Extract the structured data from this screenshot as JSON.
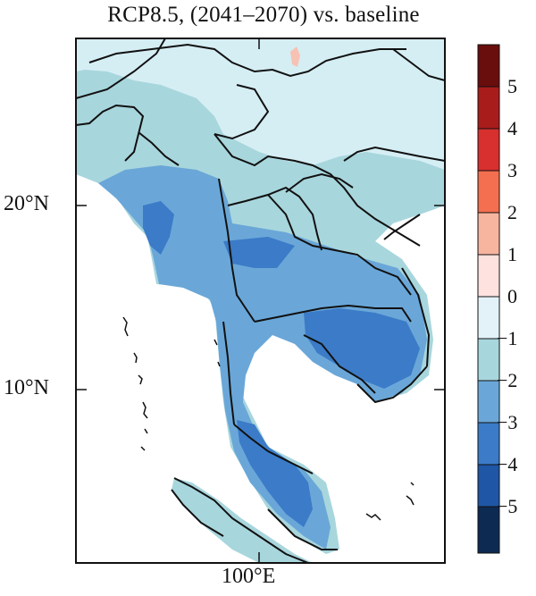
{
  "title": "RCP8.5, (2041–2070) vs. baseline",
  "axes": {
    "lat_labels": [
      "20°N",
      "10°N"
    ],
    "lon_labels": [
      "100°E"
    ]
  },
  "colorbar": {
    "labels": [
      "5",
      "4",
      "3",
      "2",
      "1",
      "0",
      "−1",
      "−2",
      "−3",
      "−4",
      "−5"
    ],
    "colors": [
      "#6a0d0d",
      "#a91c1c",
      "#d8302e",
      "#f46f4f",
      "#f7b5a0",
      "#fde2e0",
      "#e2f2f8",
      "#a8d6dd",
      "#6aa7d8",
      "#3b7bc8",
      "#1f56a5",
      "#0d2a52"
    ]
  },
  "legend_colors": {
    "land_light": "#d5eef4",
    "land_mid": "#a8d6dd",
    "land_blue": "#6aa7d8",
    "land_dark": "#3b7bc8"
  }
}
